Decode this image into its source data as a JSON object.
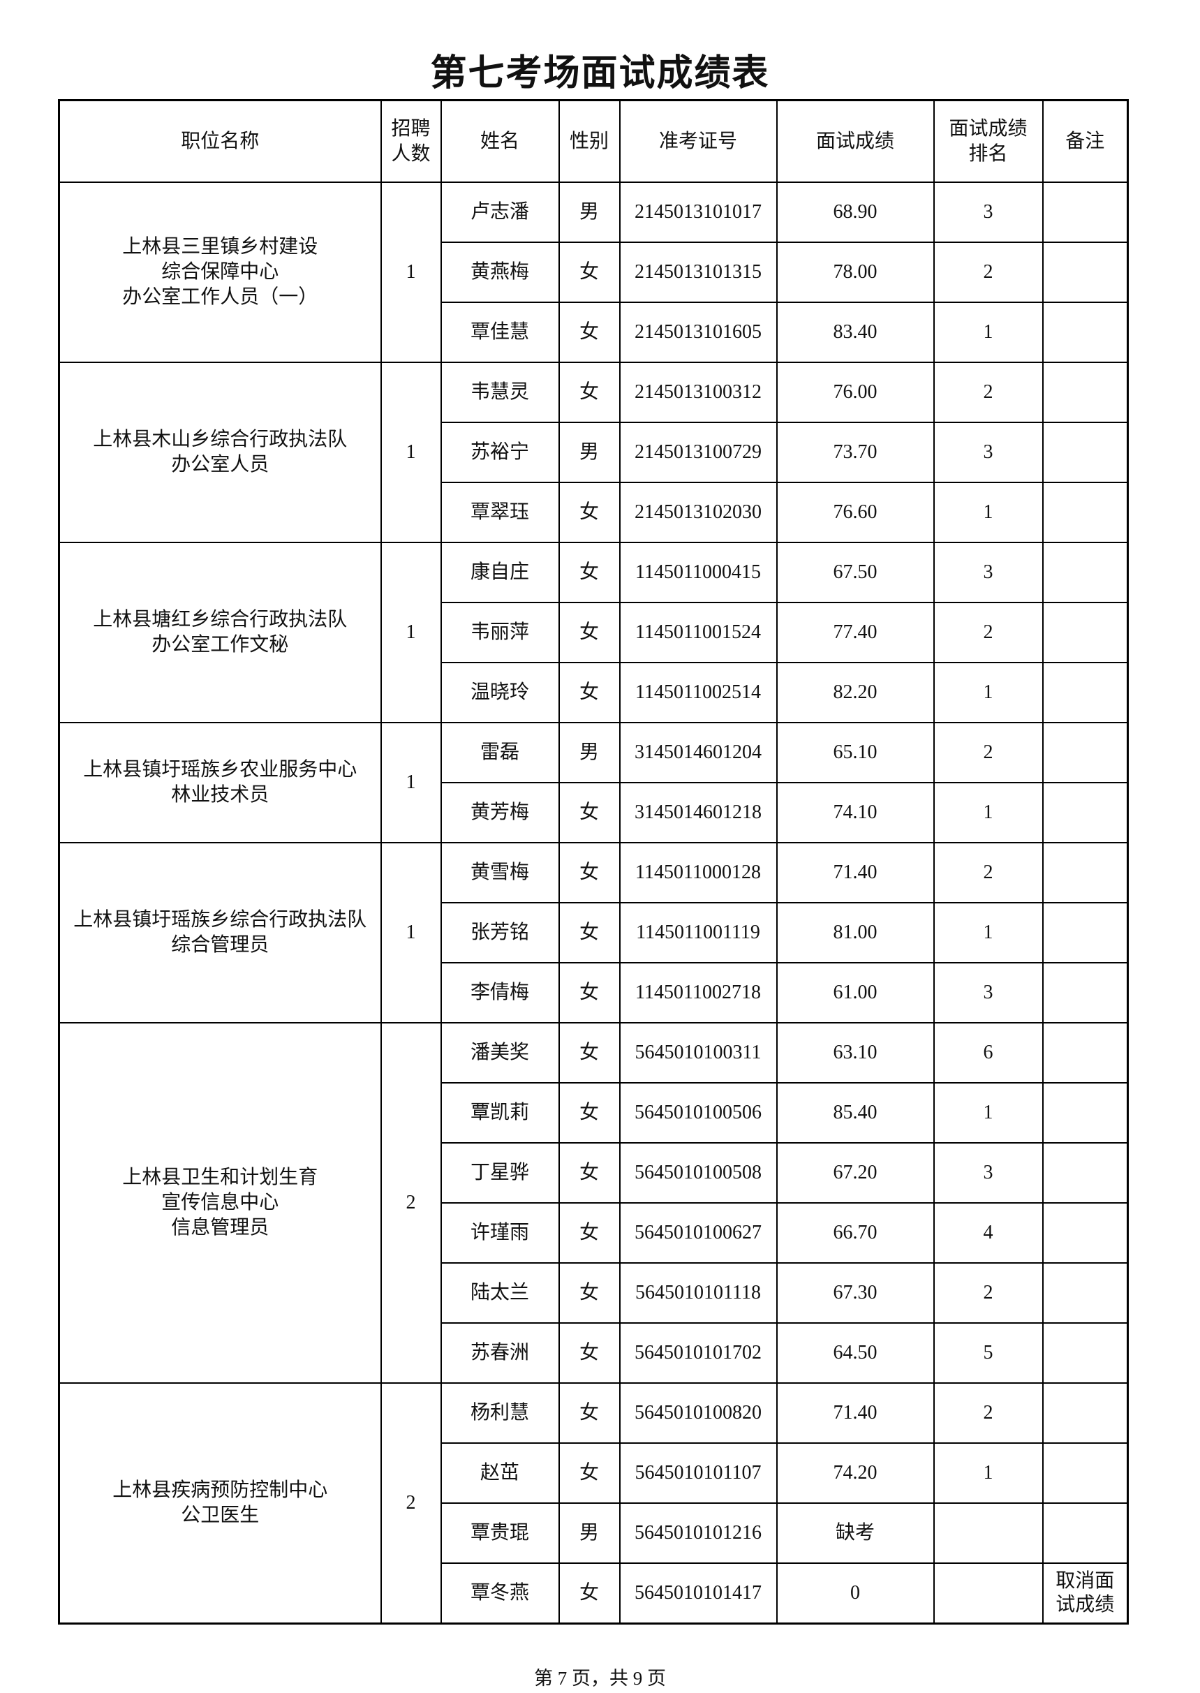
{
  "title": "第七考场面试成绩表",
  "table": {
    "header": [
      "职位名称",
      "招聘\n人数",
      "姓名",
      "性别",
      "准考证号",
      "面试成绩",
      "面试成绩\n排名",
      "备注"
    ],
    "groups": [
      {
        "position": "上林县三里镇乡村建设\n综合保障中心\n办公室工作人员（一）",
        "count": "1",
        "rows": [
          [
            "卢志潘",
            "男",
            "2145013101017",
            "68.90",
            "3",
            null
          ],
          [
            "黄燕梅",
            "女",
            "2145013101315",
            "78.00",
            "2",
            null
          ],
          [
            "覃佳慧",
            "女",
            "2145013101605",
            "83.40",
            "1",
            null
          ]
        ]
      },
      {
        "position": "上林县木山乡综合行政执法队\n办公室人员",
        "count": "1",
        "rows": [
          [
            "韦慧灵",
            "女",
            "2145013100312",
            "76.00",
            "2",
            null
          ],
          [
            "苏裕宁",
            "男",
            "2145013100729",
            "73.70",
            "3",
            null
          ],
          [
            "覃翠珏",
            "女",
            "2145013102030",
            "76.60",
            "1",
            null
          ]
        ]
      },
      {
        "position": "上林县塘红乡综合行政执法队\n办公室工作文秘",
        "count": "1",
        "rows": [
          [
            "康自庄",
            "女",
            "1145011000415",
            "67.50",
            "3",
            null
          ],
          [
            "韦丽萍",
            "女",
            "1145011001524",
            "77.40",
            "2",
            null
          ],
          [
            "温晓玲",
            "女",
            "1145011002514",
            "82.20",
            "1",
            null
          ]
        ]
      },
      {
        "position": "上林县镇圩瑶族乡农业服务中心\n林业技术员",
        "count": "1",
        "rows": [
          [
            "雷磊",
            "男",
            "3145014601204",
            "65.10",
            "2",
            null
          ],
          [
            "黄芳梅",
            "女",
            "3145014601218",
            "74.10",
            "1",
            null
          ]
        ]
      },
      {
        "position": "上林县镇圩瑶族乡综合行政执法队\n综合管理员",
        "count": "1",
        "rows": [
          [
            "黄雪梅",
            "女",
            "1145011000128",
            "71.40",
            "2",
            null
          ],
          [
            "张芳铭",
            "女",
            "1145011001119",
            "81.00",
            "1",
            null
          ],
          [
            "李倩梅",
            "女",
            "1145011002718",
            "61.00",
            "3",
            null
          ]
        ]
      },
      {
        "position": "上林县卫生和计划生育\n宣传信息中心\n信息管理员",
        "count": "2",
        "rows": [
          [
            "潘美奖",
            "女",
            "5645010100311",
            "63.10",
            "6",
            null
          ],
          [
            "覃凯莉",
            "女",
            "5645010100506",
            "85.40",
            "1",
            null
          ],
          [
            "丁星骅",
            "女",
            "5645010100508",
            "67.20",
            "3",
            null
          ],
          [
            "许瑾雨",
            "女",
            "5645010100627",
            "66.70",
            "4",
            null
          ],
          [
            "陆太兰",
            "女",
            "5645010101118",
            "67.30",
            "2",
            null
          ],
          [
            "苏春洲",
            "女",
            "5645010101702",
            "64.50",
            "5",
            null
          ]
        ]
      },
      {
        "position": "上林县疾病预防控制中心\n公卫医生",
        "count": "2",
        "rows": [
          [
            "杨利慧",
            "女",
            "5645010100820",
            "71.40",
            "2",
            null
          ],
          [
            "赵茁",
            "女",
            "5645010101107",
            "74.20",
            "1",
            null
          ],
          [
            "覃贵琨",
            "男",
            "5645010101216",
            "缺考",
            null,
            null
          ],
          [
            "覃冬燕",
            "女",
            "5645010101417",
            "0",
            null,
            "取消面\n试成绩"
          ]
        ]
      }
    ]
  },
  "footer": "第 7 页，共 9 页"
}
